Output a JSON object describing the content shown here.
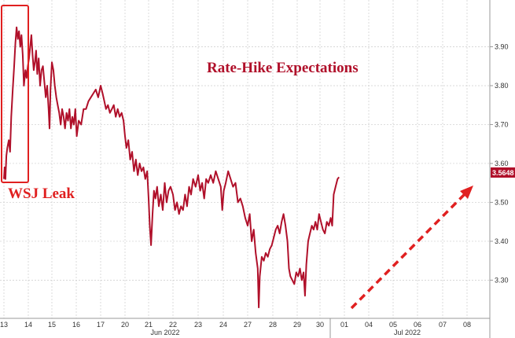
{
  "chart_data": {
    "type": "line",
    "title": "Rate-Hike Expectations",
    "annotation": "WSJ Leak",
    "last_value_label": "3.5648",
    "colors": {
      "line": "#b0102a",
      "accent": "#e02020",
      "grid": "#cccccc"
    },
    "grid": true,
    "y_axis_position": "right",
    "ylim": [
      3.22,
      4.0
    ],
    "yticks": [
      3.3,
      3.4,
      3.5,
      3.6,
      3.7,
      3.8,
      3.9
    ],
    "ytick_labels": [
      "3.30",
      "3.40",
      "3.50",
      "3.60",
      "3.70",
      "3.80",
      "3.90"
    ],
    "x_day_labels": [
      "13",
      "14",
      "15",
      "16",
      "17",
      "20",
      "21",
      "22",
      "23",
      "24",
      "27",
      "28",
      "29",
      "30",
      "01",
      "04",
      "05",
      "06",
      "07",
      "08"
    ],
    "x_month_labels": [
      "Jun 2022",
      "Jul 2022"
    ],
    "series": [
      {
        "values": [
          [
            0.0,
            3.56
          ],
          [
            0.03,
            3.59
          ],
          [
            0.06,
            3.56
          ],
          [
            0.1,
            3.62
          ],
          [
            0.14,
            3.64
          ],
          [
            0.2,
            3.66
          ],
          [
            0.25,
            3.63
          ],
          [
            0.3,
            3.72
          ],
          [
            0.36,
            3.79
          ],
          [
            0.42,
            3.85
          ],
          [
            0.47,
            3.91
          ],
          [
            0.52,
            3.95
          ],
          [
            0.57,
            3.92
          ],
          [
            0.62,
            3.94
          ],
          [
            0.67,
            3.9
          ],
          [
            0.72,
            3.93
          ],
          [
            0.77,
            3.88
          ],
          [
            0.82,
            3.8
          ],
          [
            0.88,
            3.84
          ],
          [
            0.93,
            3.82
          ],
          [
            0.98,
            3.85
          ],
          [
            1.03,
            3.87
          ],
          [
            1.08,
            3.9
          ],
          [
            1.13,
            3.93
          ],
          [
            1.18,
            3.88
          ],
          [
            1.23,
            3.84
          ],
          [
            1.28,
            3.86
          ],
          [
            1.33,
            3.89
          ],
          [
            1.38,
            3.83
          ],
          [
            1.44,
            3.87
          ],
          [
            1.5,
            3.8
          ],
          [
            1.56,
            3.84
          ],
          [
            1.62,
            3.85
          ],
          [
            1.68,
            3.81
          ],
          [
            1.74,
            3.77
          ],
          [
            1.8,
            3.8
          ],
          [
            1.86,
            3.74
          ],
          [
            1.9,
            3.69
          ],
          [
            1.94,
            3.79
          ],
          [
            2.0,
            3.86
          ],
          [
            2.06,
            3.84
          ],
          [
            2.12,
            3.8
          ],
          [
            2.18,
            3.77
          ],
          [
            2.24,
            3.75
          ],
          [
            2.3,
            3.73
          ],
          [
            2.36,
            3.7
          ],
          [
            2.42,
            3.74
          ],
          [
            2.48,
            3.72
          ],
          [
            2.54,
            3.69
          ],
          [
            2.6,
            3.73
          ],
          [
            2.66,
            3.71
          ],
          [
            2.72,
            3.74
          ],
          [
            2.78,
            3.69
          ],
          [
            2.84,
            3.72
          ],
          [
            2.9,
            3.7
          ],
          [
            2.96,
            3.74
          ],
          [
            3.02,
            3.67
          ],
          [
            3.1,
            3.71
          ],
          [
            3.2,
            3.7
          ],
          [
            3.3,
            3.74
          ],
          [
            3.4,
            3.74
          ],
          [
            3.5,
            3.76
          ],
          [
            3.6,
            3.77
          ],
          [
            3.7,
            3.78
          ],
          [
            3.8,
            3.79
          ],
          [
            3.9,
            3.77
          ],
          [
            4.0,
            3.8
          ],
          [
            4.08,
            3.78
          ],
          [
            4.15,
            3.76
          ],
          [
            4.22,
            3.74
          ],
          [
            4.3,
            3.75
          ],
          [
            4.38,
            3.73
          ],
          [
            4.46,
            3.74
          ],
          [
            4.54,
            3.75
          ],
          [
            4.62,
            3.72
          ],
          [
            4.7,
            3.74
          ],
          [
            4.78,
            3.72
          ],
          [
            4.86,
            3.73
          ],
          [
            4.94,
            3.71
          ],
          [
            5.0,
            3.67
          ],
          [
            5.06,
            3.64
          ],
          [
            5.14,
            3.66
          ],
          [
            5.22,
            3.61
          ],
          [
            5.3,
            3.63
          ],
          [
            5.38,
            3.58
          ],
          [
            5.46,
            3.61
          ],
          [
            5.54,
            3.57
          ],
          [
            5.62,
            3.6
          ],
          [
            5.7,
            3.58
          ],
          [
            5.78,
            3.59
          ],
          [
            5.86,
            3.56
          ],
          [
            5.94,
            3.58
          ],
          [
            6.0,
            3.51
          ],
          [
            6.05,
            3.44
          ],
          [
            6.1,
            3.39
          ],
          [
            6.16,
            3.47
          ],
          [
            6.22,
            3.53
          ],
          [
            6.28,
            3.51
          ],
          [
            6.35,
            3.54
          ],
          [
            6.42,
            3.49
          ],
          [
            6.5,
            3.52
          ],
          [
            6.58,
            3.48
          ],
          [
            6.66,
            3.55
          ],
          [
            6.74,
            3.5
          ],
          [
            6.82,
            3.53
          ],
          [
            6.9,
            3.54
          ],
          [
            7.0,
            3.52
          ],
          [
            7.08,
            3.48
          ],
          [
            7.16,
            3.5
          ],
          [
            7.24,
            3.47
          ],
          [
            7.32,
            3.49
          ],
          [
            7.4,
            3.48
          ],
          [
            7.48,
            3.52
          ],
          [
            7.56,
            3.49
          ],
          [
            7.64,
            3.54
          ],
          [
            7.72,
            3.52
          ],
          [
            7.8,
            3.56
          ],
          [
            7.9,
            3.54
          ],
          [
            8.0,
            3.57
          ],
          [
            8.08,
            3.53
          ],
          [
            8.16,
            3.55
          ],
          [
            8.24,
            3.51
          ],
          [
            8.32,
            3.56
          ],
          [
            8.4,
            3.55
          ],
          [
            8.5,
            3.57
          ],
          [
            8.6,
            3.55
          ],
          [
            8.7,
            3.58
          ],
          [
            8.8,
            3.56
          ],
          [
            8.9,
            3.54
          ],
          [
            8.96,
            3.48
          ],
          [
            9.02,
            3.53
          ],
          [
            9.1,
            3.55
          ],
          [
            9.2,
            3.58
          ],
          [
            9.3,
            3.56
          ],
          [
            9.4,
            3.54
          ],
          [
            9.5,
            3.55
          ],
          [
            9.6,
            3.5
          ],
          [
            9.7,
            3.51
          ],
          [
            9.8,
            3.49
          ],
          [
            9.9,
            3.46
          ],
          [
            10.0,
            3.44
          ],
          [
            10.08,
            3.47
          ],
          [
            10.16,
            3.4
          ],
          [
            10.24,
            3.43
          ],
          [
            10.32,
            3.37
          ],
          [
            10.4,
            3.33
          ],
          [
            10.44,
            3.23
          ],
          [
            10.48,
            3.31
          ],
          [
            10.56,
            3.36
          ],
          [
            10.64,
            3.35
          ],
          [
            10.72,
            3.37
          ],
          [
            10.8,
            3.36
          ],
          [
            10.88,
            3.38
          ],
          [
            10.96,
            3.39
          ],
          [
            11.04,
            3.41
          ],
          [
            11.12,
            3.43
          ],
          [
            11.2,
            3.44
          ],
          [
            11.28,
            3.42
          ],
          [
            11.36,
            3.45
          ],
          [
            11.44,
            3.47
          ],
          [
            11.52,
            3.44
          ],
          [
            11.6,
            3.4
          ],
          [
            11.66,
            3.33
          ],
          [
            11.72,
            3.31
          ],
          [
            11.8,
            3.3
          ],
          [
            11.88,
            3.29
          ],
          [
            11.96,
            3.32
          ],
          [
            12.04,
            3.31
          ],
          [
            12.12,
            3.33
          ],
          [
            12.2,
            3.3
          ],
          [
            12.28,
            3.32
          ],
          [
            12.34,
            3.26
          ],
          [
            12.4,
            3.34
          ],
          [
            12.48,
            3.4
          ],
          [
            12.56,
            3.42
          ],
          [
            12.64,
            3.44
          ],
          [
            12.72,
            3.43
          ],
          [
            12.8,
            3.45
          ],
          [
            12.88,
            3.43
          ],
          [
            12.96,
            3.47
          ],
          [
            13.04,
            3.45
          ],
          [
            13.12,
            3.43
          ],
          [
            13.2,
            3.42
          ],
          [
            13.28,
            3.45
          ],
          [
            13.36,
            3.44
          ],
          [
            13.44,
            3.46
          ],
          [
            13.5,
            3.44
          ],
          [
            13.56,
            3.52
          ],
          [
            13.64,
            3.54
          ],
          [
            13.72,
            3.56
          ],
          [
            13.78,
            3.5648
          ]
        ]
      }
    ]
  }
}
